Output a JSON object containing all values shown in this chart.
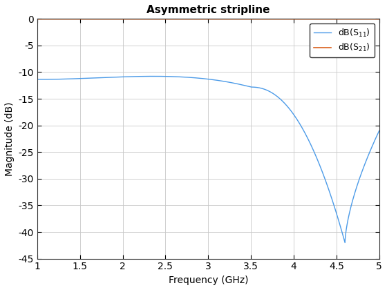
{
  "title": "Asymmetric stripline",
  "xlabel": "Frequency (GHz)",
  "ylabel": "Magnitude (dB)",
  "xlim": [
    1,
    5
  ],
  "ylim": [
    -45,
    0
  ],
  "xticks": [
    1,
    1.5,
    2,
    2.5,
    3,
    3.5,
    4,
    4.5,
    5
  ],
  "yticks": [
    0,
    -5,
    -10,
    -15,
    -20,
    -25,
    -30,
    -35,
    -40,
    -45
  ],
  "s11_color": "#4C9BE8",
  "s21_color": "#D95F1A",
  "grid_color": "#C8C8C8",
  "background_color": "#FFFFFF",
  "figsize": [
    5.6,
    4.2
  ],
  "dpi": 100,
  "title_fontsize": 11,
  "label_fontsize": 10,
  "tick_fontsize": 10,
  "legend_fontsize": 9,
  "s21_level": -0.05
}
